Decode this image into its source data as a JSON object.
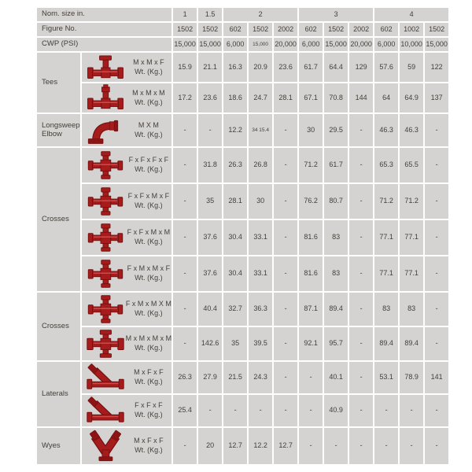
{
  "palette": {
    "cell_bg": "#d5d3d1",
    "grid": "#ffffff",
    "text": "#433f3a",
    "fitting_red": "#a61b1b",
    "fitting_dark": "#731010"
  },
  "table": {
    "header": {
      "nom_size_label": "Nom. size in.",
      "figure_label": "Figure No.",
      "cwp_label": "CWP (PSI)",
      "size_groups": [
        {
          "label": "1",
          "span": 1
        },
        {
          "label": "1.5",
          "span": 1
        },
        {
          "label": "2",
          "span": 3
        },
        {
          "label": "3",
          "span": 3
        },
        {
          "label": "4",
          "span": 3
        }
      ],
      "figure_numbers": [
        "1502",
        "1502",
        "602",
        "1502",
        "2002",
        "602",
        "1502",
        "2002",
        "602",
        "1002",
        "1502"
      ],
      "cwp_values": [
        "15,000",
        "15,000",
        "6,000",
        "15,000",
        "20,000",
        "6,000",
        "15,000",
        "20,000",
        "6,000",
        "10,000",
        "15,000"
      ],
      "small_text_columns": [
        3
      ]
    },
    "groups": [
      {
        "category": "Tees",
        "rows": [
          {
            "icon": "tee-mmf",
            "config": "M x M x F",
            "wt_label": "Wt. (Kg.)",
            "values": [
              "15.9",
              "21.1",
              "16.3",
              "20.9",
              "23.6",
              "61.7",
              "64.4",
              "129",
              "57.6",
              "59",
              "122"
            ]
          },
          {
            "icon": "tee-mmm",
            "config": "M x M x M",
            "wt_label": "Wt. (Kg.)",
            "values": [
              "17.2",
              "23.6",
              "18.6",
              "24.7",
              "28.1",
              "67.1",
              "70.8",
              "144",
              "64",
              "64.9",
              "137"
            ]
          }
        ]
      },
      {
        "category": "Longsweep Elbow",
        "rows": [
          {
            "icon": "longsweep-elbow",
            "config": "M X M",
            "wt_label": "Wt. (Kg.)",
            "values": [
              "-",
              "-",
              "12.2",
              "34 15.4",
              "-",
              "30",
              "29.5",
              "-",
              "46.3",
              "46.3",
              "-"
            ]
          }
        ]
      },
      {
        "category": "Crosses",
        "rows": [
          {
            "icon": "cross-ffff",
            "config": "F x F x F x F",
            "wt_label": "Wt. (Kg.)",
            "values": [
              "-",
              "31.8",
              "26.3",
              "26.8",
              "-",
              "71.2",
              "61.7",
              "-",
              "65.3",
              "65.5",
              "-"
            ]
          },
          {
            "icon": "cross-ffmf",
            "config": "F x F x M x F",
            "wt_label": "Wt. (Kg.)",
            "values": [
              "-",
              "35",
              "28.1",
              "30",
              "-",
              "76.2",
              "80.7",
              "-",
              "71.2",
              "71.2",
              "-"
            ]
          },
          {
            "icon": "cross-ffmm",
            "config": "F x F x M x M",
            "wt_label": "Wt. (Kg.)",
            "values": [
              "-",
              "37.6",
              "30.4",
              "33.1",
              "-",
              "81.6",
              "83",
              "-",
              "77.1",
              "77.1",
              "-"
            ]
          },
          {
            "icon": "cross-fmmf",
            "config": "F x M x M x F",
            "wt_label": "Wt. (Kg.)",
            "values": [
              "-",
              "37.6",
              "30.4",
              "33.1",
              "-",
              "81.6",
              "83",
              "-",
              "77.1",
              "77.1",
              "-"
            ]
          }
        ]
      },
      {
        "category": "Crosses",
        "rows": [
          {
            "icon": "cross-fmmm",
            "config": "F x M x M X M",
            "wt_label": "Wt. (Kg.)",
            "values": [
              "-",
              "40.4",
              "32.7",
              "36.3",
              "-",
              "87.1",
              "89.4",
              "-",
              "83",
              "83",
              "-"
            ]
          },
          {
            "icon": "cross-mmmm",
            "config": "M x M x M x M",
            "wt_label": "Wt. (Kg.)",
            "values": [
              "-",
              "142.6",
              "35",
              "39.5",
              "-",
              "92.1",
              "95.7",
              "-",
              "89.4",
              "89.4",
              "-"
            ]
          }
        ]
      },
      {
        "category": "Laterals",
        "rows": [
          {
            "icon": "lateral-mff",
            "config": "M x F x F",
            "wt_label": "Wt. (Kg.)",
            "values": [
              "26.3",
              "27.9",
              "21.5",
              "24.3",
              "-",
              "-",
              "40.1",
              "-",
              "53.1",
              "78.9",
              "141"
            ]
          },
          {
            "icon": "lateral-fff",
            "config": "F x F x F",
            "wt_label": "Wt. (Kg.)",
            "values": [
              "25.4",
              "-",
              "-",
              "-",
              "-",
              "-",
              "40.9",
              "-",
              "-",
              "-",
              "-"
            ]
          }
        ]
      },
      {
        "category": "Wyes",
        "rows": [
          {
            "icon": "wye-mff",
            "config": "M x F x F",
            "wt_label": "Wt. (Kg.)",
            "values": [
              "-",
              "20",
              "12.7",
              "12.2",
              "12.7",
              "-",
              "-",
              "-",
              "-",
              "-",
              "-"
            ]
          }
        ]
      }
    ]
  }
}
